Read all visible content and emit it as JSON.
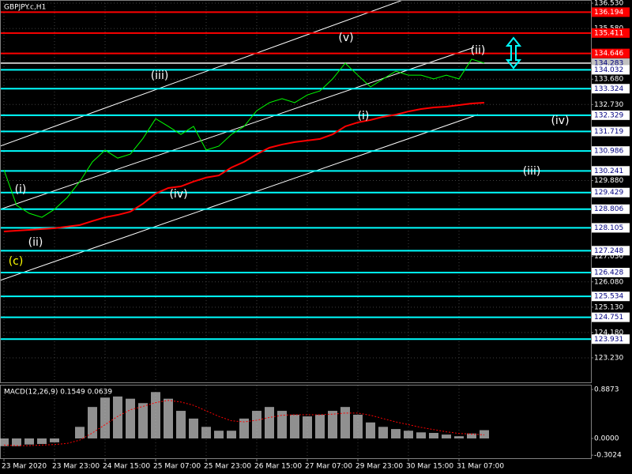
{
  "chart_data": {
    "type": "line",
    "title": "GBPJPY.c,H1",
    "indicator_label": "MACD(12,26,9) 0.1549 0.0639",
    "annotations": [
      "(v)",
      "(ii)",
      "(iii)",
      "(i)",
      "(iv)",
      "(iii)",
      "(i)",
      "(iv)",
      "(ii)",
      "(c)"
    ],
    "categories": [
      "23 Mar 2020",
      null,
      null,
      null,
      "23 Mar 23:00",
      null,
      null,
      null,
      "24 Mar 15:00",
      null,
      null,
      null,
      "25 Mar 07:00",
      null,
      null,
      null,
      "25 Mar 23:00",
      null,
      null,
      null,
      "26 Mar 15:00",
      null,
      null,
      null,
      "27 Mar 07:00",
      null,
      null,
      null,
      "29 Mar 23:00",
      null,
      null,
      null,
      "30 Mar 15:00",
      null,
      null,
      null,
      "31 Mar 07:00",
      null,
      null
    ],
    "series": [
      {
        "color": "#00ff00",
        "values": [
          130.28,
          128.95,
          128.65,
          128.5,
          128.8,
          129.24,
          129.84,
          130.58,
          131.02,
          130.72,
          130.87,
          131.46,
          132.2,
          131.91,
          131.61,
          131.91,
          131.02,
          131.17,
          131.61,
          131.91,
          132.5,
          132.8,
          132.95,
          132.8,
          133.09,
          133.24,
          133.69,
          134.28,
          133.83,
          133.39,
          133.69,
          133.98,
          133.83,
          133.83,
          133.69,
          133.83,
          133.69,
          134.43,
          134.283
        ]
      },
      {
        "color": "#ff0000",
        "values": [
          127.97,
          128.0,
          128.03,
          128.06,
          128.09,
          128.15,
          128.21,
          128.36,
          128.5,
          128.59,
          128.71,
          129.01,
          129.39,
          129.6,
          129.66,
          129.84,
          129.99,
          130.07,
          130.37,
          130.58,
          130.87,
          131.11,
          131.23,
          131.32,
          131.38,
          131.44,
          131.61,
          131.91,
          132.06,
          132.15,
          132.27,
          132.35,
          132.47,
          132.56,
          132.62,
          132.65,
          132.71,
          132.77,
          132.8
        ]
      }
    ],
    "ylim": [
      122.31,
      136.65
    ],
    "yticks": [
      {
        "value": 136.53,
        "label": "136.530"
      },
      {
        "value": 135.58,
        "label": "135.580"
      },
      {
        "value": 133.68,
        "label": "133.680"
      },
      {
        "value": 132.73,
        "label": "132.730"
      },
      {
        "value": 129.88,
        "label": "129.880"
      },
      {
        "value": 127.03,
        "label": "127.030"
      },
      {
        "value": 126.08,
        "label": "126.080"
      },
      {
        "value": 125.13,
        "label": "125.130"
      },
      {
        "value": 124.18,
        "label": "124.180"
      },
      {
        "value": 123.23,
        "label": "123.230"
      }
    ],
    "grid": true,
    "levels": [
      {
        "value": 136.194,
        "label": "136.194",
        "color": "#ff0000"
      },
      {
        "value": 135.411,
        "label": "135.411",
        "color": "#ff0000"
      },
      {
        "value": 134.646,
        "label": "134.646",
        "color": "#ff0000"
      },
      {
        "value": 134.283,
        "label": "134.283",
        "color": "#c0c0c0"
      },
      {
        "value": 134.032,
        "label": "134.032",
        "color": "#00ffff"
      },
      {
        "value": 133.324,
        "label": "133.324",
        "color": "#00ffff"
      },
      {
        "value": 132.329,
        "label": "132.329",
        "color": "#00ffff"
      },
      {
        "value": 131.719,
        "label": "131.719",
        "color": "#00ffff"
      },
      {
        "value": 130.986,
        "label": "130.986",
        "color": "#00ffff"
      },
      {
        "value": 130.241,
        "label": "130.241",
        "color": "#00ffff"
      },
      {
        "value": 129.429,
        "label": "129.429",
        "color": "#00ffff"
      },
      {
        "value": 128.806,
        "label": "128.806",
        "color": "#00ffff"
      },
      {
        "value": 128.105,
        "label": "128.105",
        "color": "#00ffff"
      },
      {
        "value": 127.248,
        "label": "127.248",
        "color": "#00ffff"
      },
      {
        "value": 126.428,
        "label": "126.428",
        "color": "#00ffff"
      },
      {
        "value": 125.534,
        "label": "125.534",
        "color": "#00ffff"
      },
      {
        "value": 124.751,
        "label": "124.751",
        "color": "#00ffff"
      },
      {
        "value": 123.931,
        "label": "123.931",
        "color": "#00ffff"
      }
    ],
    "macd": {
      "ylim": [
        -0.3578,
        0.973
      ],
      "yticks": [
        {
          "value": 0.8873,
          "label": "0.8873"
        },
        {
          "value": 0,
          "label": "0.0000"
        },
        {
          "value": -0.3024,
          "label": "-0.3024"
        }
      ],
      "histogram": {
        "color": "#c0c0c0",
        "values": [
          -0.14,
          -0.14,
          -0.11,
          -0.1,
          -0.07,
          0,
          0.21,
          0.57,
          0.74,
          0.76,
          0.72,
          0.64,
          0.84,
          0.72,
          0.5,
          0.36,
          0.21,
          0.14,
          0.14,
          0.36,
          0.5,
          0.57,
          0.5,
          0.43,
          0.4,
          0.43,
          0.5,
          0.57,
          0.43,
          0.29,
          0.21,
          0.17,
          0.14,
          0.11,
          0.1,
          0.07,
          0.04,
          0.09,
          0.15
        ]
      },
      "signal": {
        "color": "#ff0000",
        "values": [
          -0.12,
          -0.13,
          -0.13,
          -0.12,
          -0.11,
          -0.09,
          -0.03,
          0.1,
          0.25,
          0.4,
          0.52,
          0.58,
          0.65,
          0.69,
          0.66,
          0.6,
          0.5,
          0.4,
          0.32,
          0.3,
          0.33,
          0.38,
          0.42,
          0.43,
          0.43,
          0.43,
          0.44,
          0.46,
          0.46,
          0.42,
          0.36,
          0.3,
          0.25,
          0.2,
          0.16,
          0.12,
          0.09,
          0.08,
          0.064
        ]
      }
    }
  }
}
